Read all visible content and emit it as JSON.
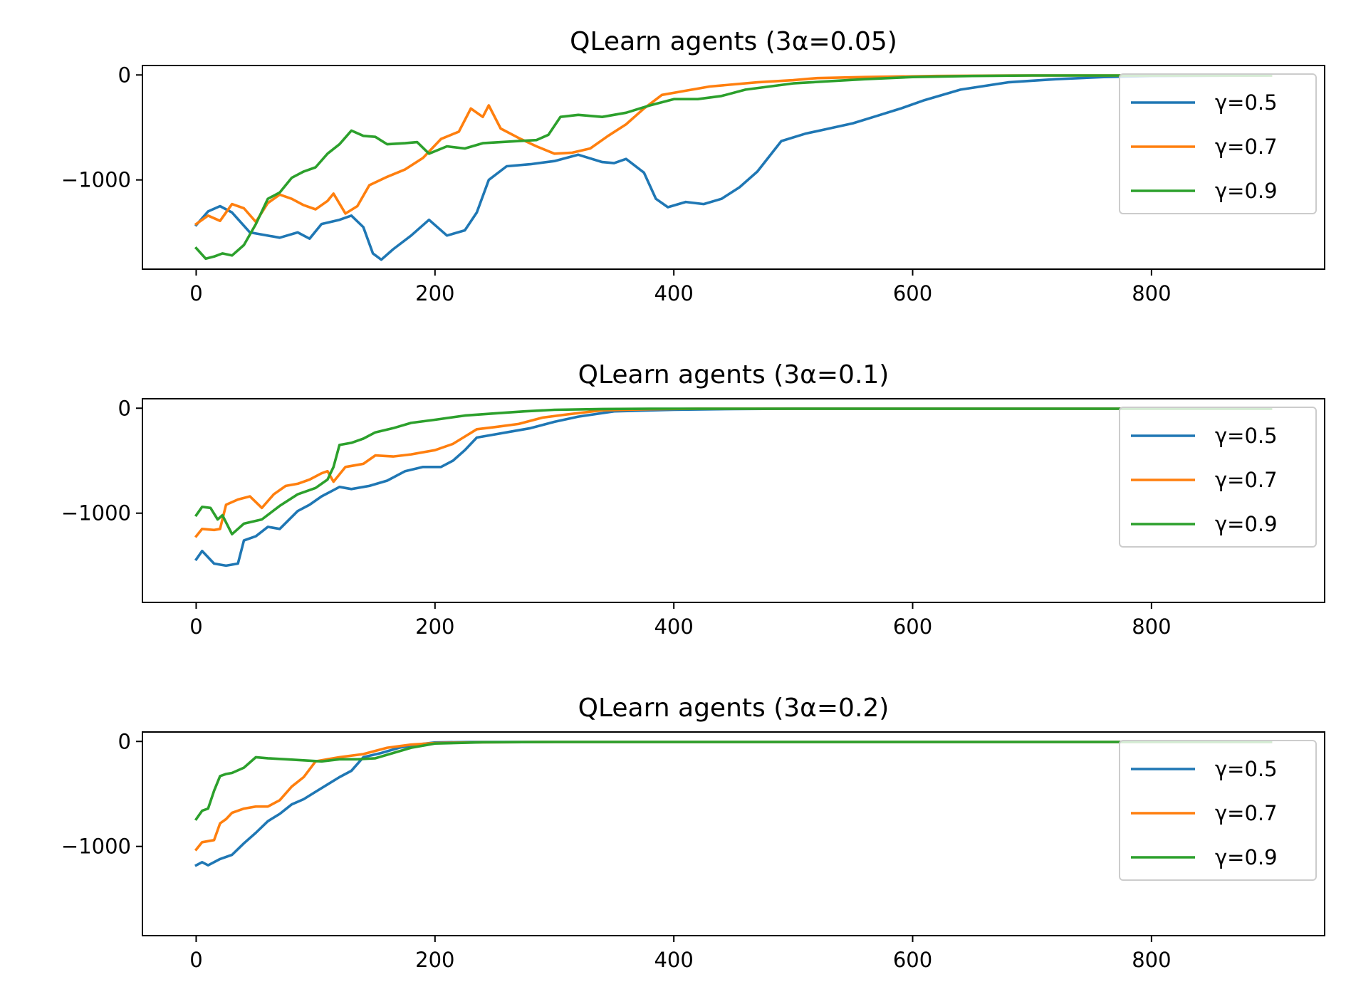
{
  "chart_data": [
    {
      "type": "line",
      "title": "QLearn agents (3α=0.05)",
      "xlim": [
        -45,
        945
      ],
      "ylim": [
        -1850,
        90
      ],
      "xticks": [
        0,
        200,
        400,
        600,
        800
      ],
      "yticks": [
        0,
        -1000
      ],
      "xtick_labels": [
        "0",
        "200",
        "400",
        "600",
        "800"
      ],
      "ytick_labels": [
        "0",
        "−1000"
      ],
      "grid": false,
      "legend": "upper right",
      "series": [
        {
          "name": "γ=0.5",
          "color": "#1f77b4",
          "x": [
            0,
            10,
            20,
            30,
            45,
            55,
            70,
            85,
            95,
            105,
            120,
            130,
            140,
            148,
            155,
            165,
            180,
            195,
            210,
            225,
            235,
            245,
            260,
            280,
            300,
            320,
            340,
            350,
            360,
            375,
            385,
            395,
            410,
            425,
            440,
            455,
            470,
            490,
            510,
            530,
            550,
            570,
            590,
            610,
            640,
            680,
            720,
            760,
            800,
            900
          ],
          "y": [
            -1430,
            -1300,
            -1250,
            -1310,
            -1500,
            -1520,
            -1550,
            -1500,
            -1560,
            -1420,
            -1380,
            -1340,
            -1450,
            -1700,
            -1760,
            -1660,
            -1530,
            -1380,
            -1530,
            -1480,
            -1310,
            -1000,
            -870,
            -850,
            -820,
            -760,
            -830,
            -840,
            -800,
            -930,
            -1180,
            -1260,
            -1210,
            -1230,
            -1180,
            -1070,
            -920,
            -630,
            -560,
            -510,
            -460,
            -390,
            -320,
            -240,
            -140,
            -70,
            -40,
            -20,
            -10,
            -5
          ]
        },
        {
          "name": "γ=0.7",
          "color": "#ff7f0e",
          "x": [
            0,
            10,
            20,
            30,
            40,
            50,
            60,
            70,
            80,
            90,
            100,
            110,
            115,
            125,
            135,
            145,
            160,
            175,
            190,
            205,
            220,
            230,
            240,
            245,
            255,
            270,
            285,
            300,
            315,
            330,
            345,
            360,
            375,
            390,
            410,
            430,
            450,
            470,
            500,
            520,
            560,
            620,
            680,
            740,
            800,
            900
          ],
          "y": [
            -1420,
            -1340,
            -1390,
            -1230,
            -1270,
            -1400,
            -1220,
            -1140,
            -1180,
            -1240,
            -1280,
            -1200,
            -1130,
            -1320,
            -1250,
            -1050,
            -970,
            -900,
            -790,
            -610,
            -540,
            -320,
            -400,
            -290,
            -510,
            -600,
            -680,
            -750,
            -740,
            -700,
            -580,
            -470,
            -320,
            -190,
            -150,
            -110,
            -90,
            -70,
            -50,
            -30,
            -20,
            -10,
            -5,
            -5,
            -5,
            -5
          ]
        },
        {
          "name": "γ=0.9",
          "color": "#2ca02c",
          "x": [
            0,
            8,
            15,
            22,
            30,
            40,
            50,
            60,
            70,
            80,
            90,
            100,
            110,
            120,
            130,
            140,
            150,
            160,
            175,
            185,
            195,
            210,
            225,
            240,
            255,
            270,
            285,
            295,
            305,
            320,
            340,
            360,
            380,
            400,
            420,
            440,
            460,
            480,
            500,
            530,
            560,
            600,
            650,
            700,
            760,
            900
          ],
          "y": [
            -1650,
            -1750,
            -1730,
            -1700,
            -1720,
            -1620,
            -1420,
            -1180,
            -1120,
            -980,
            -920,
            -880,
            -750,
            -660,
            -530,
            -580,
            -590,
            -660,
            -650,
            -640,
            -750,
            -680,
            -700,
            -650,
            -640,
            -630,
            -620,
            -570,
            -400,
            -380,
            -400,
            -360,
            -290,
            -230,
            -230,
            -200,
            -140,
            -110,
            -80,
            -60,
            -40,
            -20,
            -10,
            -5,
            -5,
            -5
          ]
        }
      ]
    },
    {
      "type": "line",
      "title": "QLearn agents (3α=0.1)",
      "xlim": [
        -45,
        945
      ],
      "ylim": [
        -1850,
        90
      ],
      "xticks": [
        0,
        200,
        400,
        600,
        800
      ],
      "yticks": [
        0,
        -1000
      ],
      "xtick_labels": [
        "0",
        "200",
        "400",
        "600",
        "800"
      ],
      "ytick_labels": [
        "0",
        "−1000"
      ],
      "grid": false,
      "legend": "upper right",
      "series": [
        {
          "name": "γ=0.5",
          "color": "#1f77b4",
          "x": [
            0,
            5,
            15,
            25,
            35,
            40,
            50,
            60,
            70,
            85,
            95,
            105,
            115,
            120,
            130,
            145,
            160,
            175,
            190,
            205,
            215,
            225,
            235,
            250,
            265,
            280,
            300,
            320,
            350,
            400,
            450,
            500,
            600,
            700,
            800,
            900
          ],
          "y": [
            -1440,
            -1360,
            -1480,
            -1500,
            -1480,
            -1260,
            -1220,
            -1130,
            -1150,
            -980,
            -920,
            -840,
            -780,
            -750,
            -770,
            -740,
            -690,
            -600,
            -560,
            -560,
            -500,
            -400,
            -280,
            -250,
            -220,
            -190,
            -130,
            -80,
            -30,
            -15,
            -8,
            -5,
            -5,
            -5,
            -5,
            -5
          ]
        },
        {
          "name": "γ=0.7",
          "color": "#ff7f0e",
          "x": [
            0,
            5,
            15,
            20,
            25,
            35,
            45,
            55,
            65,
            75,
            85,
            95,
            105,
            110,
            115,
            125,
            140,
            150,
            165,
            180,
            200,
            215,
            225,
            235,
            250,
            270,
            290,
            310,
            340,
            380,
            420,
            500,
            600,
            700,
            800,
            900
          ],
          "y": [
            -1220,
            -1150,
            -1160,
            -1150,
            -920,
            -870,
            -840,
            -950,
            -820,
            -740,
            -720,
            -680,
            -620,
            -600,
            -700,
            -560,
            -530,
            -450,
            -460,
            -440,
            -400,
            -340,
            -270,
            -200,
            -180,
            -150,
            -90,
            -60,
            -20,
            -10,
            -5,
            -5,
            -5,
            -5,
            -5,
            -5
          ]
        },
        {
          "name": "γ=0.9",
          "color": "#2ca02c",
          "x": [
            0,
            5,
            12,
            18,
            22,
            30,
            40,
            55,
            70,
            85,
            100,
            110,
            115,
            120,
            130,
            140,
            150,
            165,
            180,
            200,
            225,
            250,
            275,
            300,
            340,
            380,
            450,
            600,
            750,
            900
          ],
          "y": [
            -1020,
            -940,
            -950,
            -1060,
            -1020,
            -1200,
            -1100,
            -1060,
            -930,
            -820,
            -760,
            -680,
            -560,
            -350,
            -330,
            -290,
            -230,
            -190,
            -140,
            -110,
            -70,
            -50,
            -30,
            -15,
            -8,
            -5,
            -5,
            -5,
            -5,
            -5
          ]
        }
      ]
    },
    {
      "type": "line",
      "title": "QLearn agents (3α=0.2)",
      "xlim": [
        -45,
        945
      ],
      "ylim": [
        -1850,
        90
      ],
      "xticks": [
        0,
        200,
        400,
        600,
        800
      ],
      "yticks": [
        0,
        -1000
      ],
      "xtick_labels": [
        "0",
        "200",
        "400",
        "600",
        "800"
      ],
      "ytick_labels": [
        "0",
        "−1000"
      ],
      "grid": false,
      "legend": "upper right",
      "series": [
        {
          "name": "γ=0.5",
          "color": "#1f77b4",
          "x": [
            0,
            5,
            10,
            20,
            30,
            40,
            50,
            60,
            70,
            80,
            90,
            100,
            110,
            120,
            130,
            140,
            155,
            170,
            185,
            200,
            230,
            300,
            400,
            500,
            600,
            700,
            800,
            900
          ],
          "y": [
            -1180,
            -1150,
            -1180,
            -1120,
            -1080,
            -970,
            -870,
            -760,
            -690,
            -600,
            -550,
            -480,
            -410,
            -340,
            -280,
            -150,
            -110,
            -60,
            -30,
            -10,
            -5,
            -5,
            -5,
            -5,
            -5,
            -5,
            -5,
            -5
          ]
        },
        {
          "name": "γ=0.7",
          "color": "#ff7f0e",
          "x": [
            0,
            5,
            15,
            20,
            25,
            30,
            40,
            50,
            60,
            70,
            80,
            90,
            100,
            110,
            120,
            140,
            160,
            180,
            200,
            240,
            300,
            400,
            500,
            600,
            700,
            800,
            900
          ],
          "y": [
            -1030,
            -960,
            -940,
            -780,
            -740,
            -680,
            -640,
            -620,
            -620,
            -560,
            -430,
            -340,
            -190,
            -170,
            -150,
            -120,
            -60,
            -30,
            -15,
            -8,
            -5,
            -5,
            -5,
            -5,
            -5,
            -5,
            -5
          ]
        },
        {
          "name": "γ=0.9",
          "color": "#2ca02c",
          "x": [
            0,
            5,
            10,
            15,
            20,
            25,
            30,
            40,
            50,
            60,
            75,
            90,
            105,
            120,
            135,
            150,
            165,
            180,
            200,
            240,
            300,
            400,
            500,
            600,
            700,
            800,
            900
          ],
          "y": [
            -740,
            -660,
            -640,
            -470,
            -330,
            -310,
            -300,
            -250,
            -150,
            -160,
            -170,
            -180,
            -190,
            -170,
            -170,
            -160,
            -110,
            -60,
            -20,
            -8,
            -5,
            -5,
            -5,
            -5,
            -5,
            -5,
            -5
          ]
        }
      ]
    }
  ]
}
